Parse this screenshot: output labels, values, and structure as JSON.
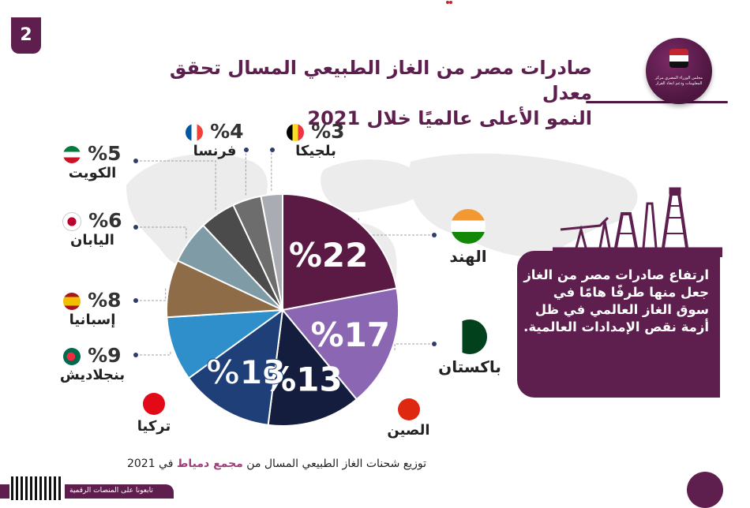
{
  "page_number": "2",
  "logo_text": "مجلس الوزراء المصري مركز المعلومات ودعم اتخاذ القرار",
  "title_line1": "صادرات مصر من الغاز الطبيعي المسال تحقق معدل",
  "title_line2": "النمو الأعلى عالميًا خلال 2021",
  "info_text": "ارتفاع صادرات مصر من الغاز جعل منها طرفًا هامًا في سوق الغاز العالمي في ظل أزمة نقص الإمدادات العالمية.",
  "footer": {
    "before": "توزيع شحنات الغاز الطبيعي المسال من",
    "highlight": "مجمع دمياط",
    "after": "في 2021"
  },
  "follow_text": "تابعونا على المنصات الرقمية",
  "colors": {
    "brand": "#5e1f4f",
    "india": "#5b1a44",
    "pakistan": "#8a66b3",
    "china": "#141d3d",
    "turkey": "#1f3f78",
    "bangladesh": "#2f8fcb",
    "spain": "#8f6c48",
    "japan": "#7f9ba5",
    "kuwait": "#4b4b4b",
    "france": "#6d6d6d",
    "belgium": "#a9acb3"
  },
  "chart_data": {
    "type": "pie",
    "title": "",
    "unit": "%",
    "slices": [
      {
        "name": "الهند",
        "value": 22,
        "label": "%22",
        "flag": "india-flag-icon"
      },
      {
        "name": "باكستان",
        "value": 17,
        "label": "%17",
        "flag": "pakistan-flag-icon"
      },
      {
        "name": "الصين",
        "value": 13,
        "label": "%13",
        "flag": "china-flag-icon"
      },
      {
        "name": "تركيا",
        "value": 13,
        "label": "%13",
        "flag": "turkey-flag-icon"
      },
      {
        "name": "بنجلاديش",
        "value": 9,
        "label": "%9",
        "flag": "bangladesh-flag-icon"
      },
      {
        "name": "إسبانيا",
        "value": 8,
        "label": "%8",
        "flag": "spain-flag-icon"
      },
      {
        "name": "اليابان",
        "value": 6,
        "label": "%6",
        "flag": "japan-flag-icon"
      },
      {
        "name": "الكويت",
        "value": 5,
        "label": "%5",
        "flag": "kuwait-flag-icon"
      },
      {
        "name": "فرنسا",
        "value": 4,
        "label": "%4",
        "flag": "france-flag-icon"
      },
      {
        "name": "بلجيكا",
        "value": 3,
        "label": "%3",
        "flag": "belgium-flag-icon"
      }
    ]
  }
}
